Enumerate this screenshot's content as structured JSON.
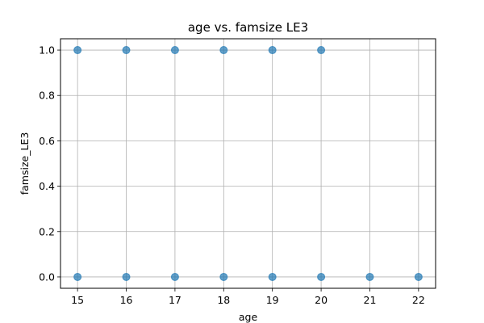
{
  "chart_data": {
    "type": "scatter",
    "title": "age vs. famsize LE3",
    "xlabel": "age",
    "ylabel": "famsize_LE3",
    "xlim": [
      14.65,
      22.35
    ],
    "ylim": [
      -0.05,
      1.05
    ],
    "xticks": [
      15,
      16,
      17,
      18,
      19,
      20,
      21,
      22
    ],
    "yticks": [
      0.0,
      0.2,
      0.4,
      0.6,
      0.8,
      1.0
    ],
    "ytick_labels": [
      "0.0",
      "0.2",
      "0.4",
      "0.6",
      "0.8",
      "1.0"
    ],
    "grid": true,
    "point_color": "#1f77b4",
    "point_alpha": 0.7,
    "series": [
      {
        "x": [
          15,
          16,
          17,
          18,
          19,
          20,
          15,
          16,
          17,
          18,
          19,
          20,
          21,
          22
        ],
        "y": [
          1,
          1,
          1,
          1,
          1,
          1,
          0,
          0,
          0,
          0,
          0,
          0,
          0,
          0
        ]
      }
    ]
  }
}
